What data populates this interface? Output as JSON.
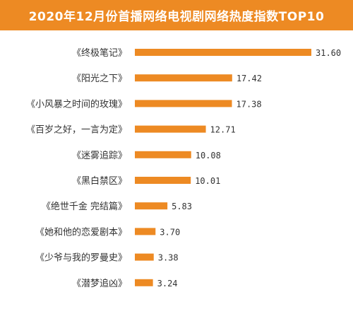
{
  "chart_data": {
    "type": "bar",
    "orientation": "horizontal",
    "title": "2020年12月份首播网络电视剧网络热度指数TOP10",
    "categories": [
      "《终极笔记》",
      "《阳光之下》",
      "《小风暴之时间的玫瑰》",
      "《百岁之好，一言为定》",
      "《迷雾追踪》",
      "《黑白禁区》",
      "《绝世千金 完结篇》",
      "《她和他的恋爱剧本》",
      "《少爷与我的罗曼史》",
      "《潜梦追凶》"
    ],
    "values": [
      31.6,
      17.42,
      17.38,
      12.71,
      10.08,
      10.01,
      5.83,
      3.7,
      3.38,
      3.24
    ],
    "value_labels": [
      "31.60",
      "17.42",
      "17.38",
      "12.71",
      "10.08",
      "10.01",
      "5.83",
      "3.70",
      "3.38",
      "3.24"
    ],
    "xlim": [
      0,
      31.6
    ],
    "grid": false,
    "colors": {
      "bar": "#ed8a23",
      "title_bg": "#ed8a23",
      "title_text": "#ffffff",
      "label": "#333333"
    }
  }
}
